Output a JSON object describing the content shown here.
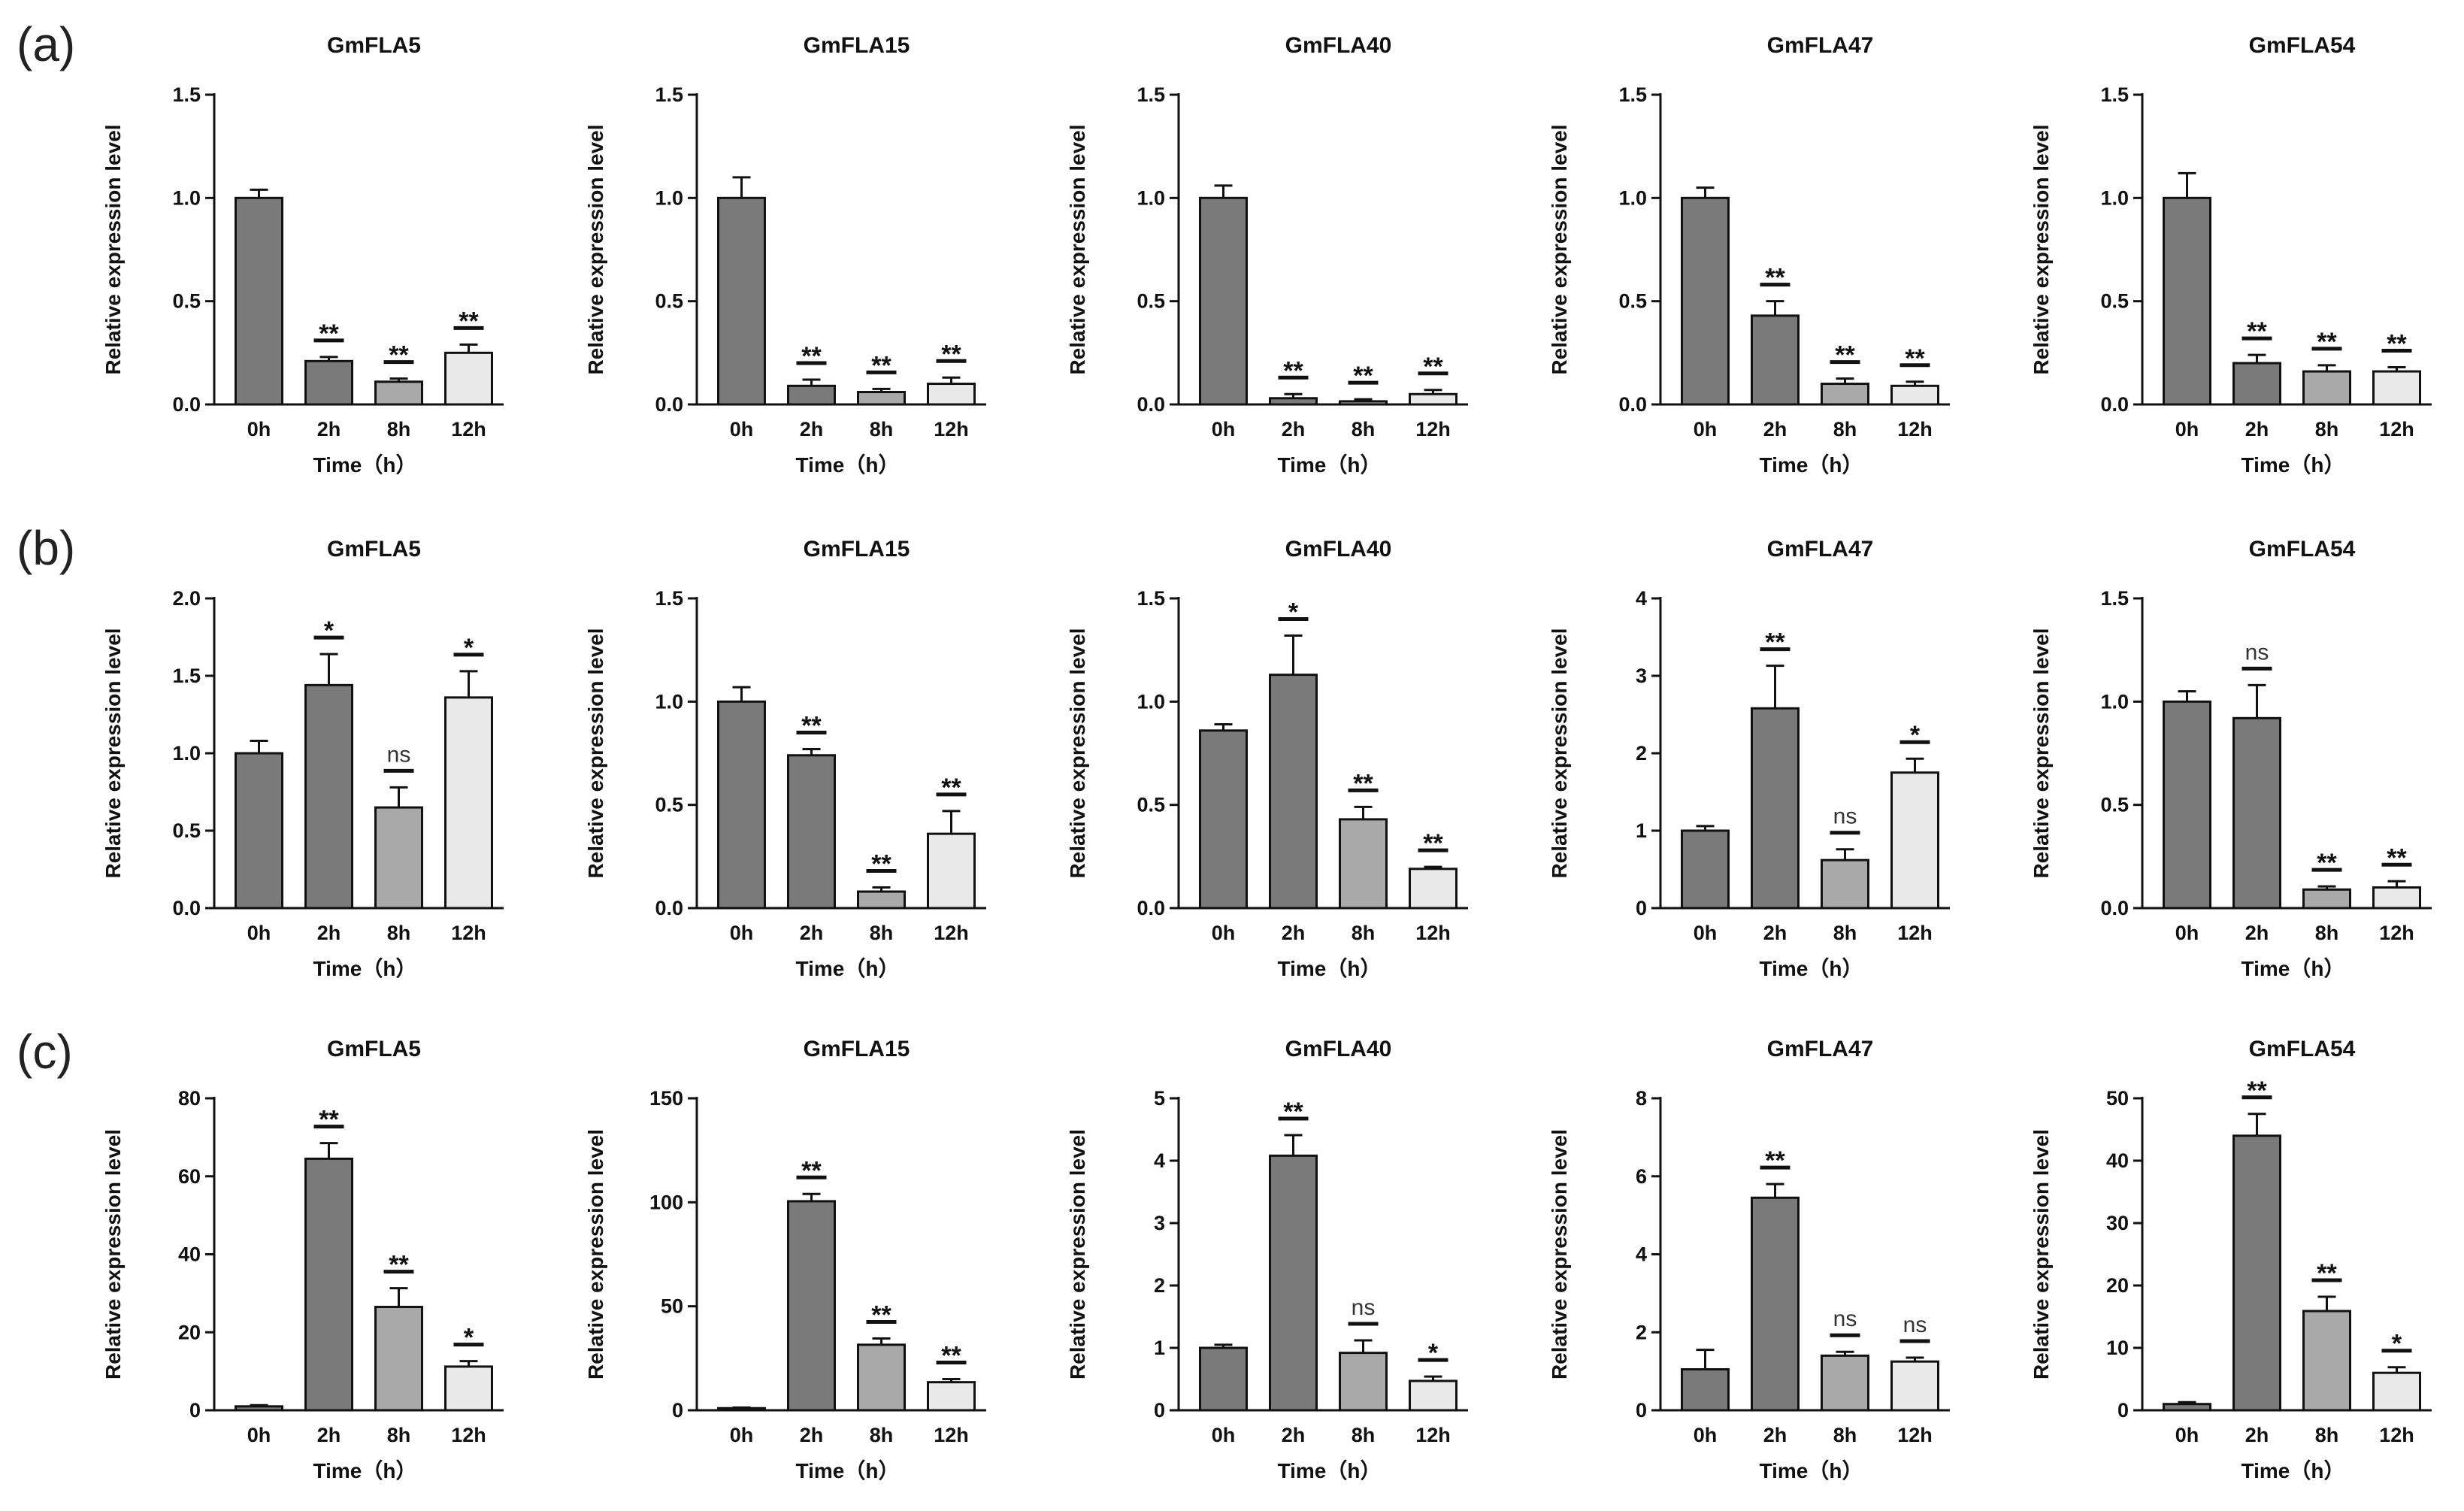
{
  "panel_labels": [
    "(a)",
    "(b)",
    "(c)"
  ],
  "colors": {
    "bars": [
      "#7a7a7a",
      "#7a7a7a",
      "#a9a9a9",
      "#e9e9e9"
    ],
    "outline": "#111111"
  },
  "chart_data": [
    {
      "type": "bar",
      "row": 0,
      "col": 0,
      "title": "GmFLA5",
      "xlabel": "Time（h）",
      "ylabel": "Relative expression level",
      "categories": [
        "0h",
        "2h",
        "8h",
        "12h"
      ],
      "values": [
        1.0,
        0.21,
        0.11,
        0.25
      ],
      "errors": [
        0.04,
        0.02,
        0.015,
        0.04
      ],
      "significance": [
        "",
        "**",
        "**",
        "**"
      ],
      "ylim": [
        0,
        1.5
      ],
      "yticks": [
        0,
        0.5,
        1.0,
        1.5
      ],
      "ytick_labels": [
        "0.0",
        "0.5",
        "1.0",
        "1.5"
      ]
    },
    {
      "type": "bar",
      "row": 0,
      "col": 1,
      "title": "GmFLA15",
      "xlabel": "Time（h）",
      "ylabel": "Relative expression level",
      "categories": [
        "0h",
        "2h",
        "8h",
        "12h"
      ],
      "values": [
        1.0,
        0.09,
        0.06,
        0.1
      ],
      "errors": [
        0.1,
        0.03,
        0.015,
        0.03
      ],
      "significance": [
        "",
        "**",
        "**",
        "**"
      ],
      "ylim": [
        0,
        1.5
      ],
      "yticks": [
        0,
        0.5,
        1.0,
        1.5
      ],
      "ytick_labels": [
        "0.0",
        "0.5",
        "1.0",
        "1.5"
      ]
    },
    {
      "type": "bar",
      "row": 0,
      "col": 2,
      "title": "GmFLA40",
      "xlabel": "Time（h）",
      "ylabel": "Relative expression level",
      "categories": [
        "0h",
        "2h",
        "8h",
        "12h"
      ],
      "values": [
        1.0,
        0.03,
        0.015,
        0.05
      ],
      "errors": [
        0.06,
        0.02,
        0.01,
        0.02
      ],
      "significance": [
        "",
        "**",
        "**",
        "**"
      ],
      "ylim": [
        0,
        1.5
      ],
      "yticks": [
        0,
        0.5,
        1.0,
        1.5
      ],
      "ytick_labels": [
        "0.0",
        "0.5",
        "1.0",
        "1.5"
      ]
    },
    {
      "type": "bar",
      "row": 0,
      "col": 3,
      "title": "GmFLA47",
      "xlabel": "Time（h）",
      "ylabel": "Relative expression level",
      "categories": [
        "0h",
        "2h",
        "8h",
        "12h"
      ],
      "values": [
        1.0,
        0.43,
        0.1,
        0.09
      ],
      "errors": [
        0.05,
        0.07,
        0.025,
        0.02
      ],
      "significance": [
        "",
        "**",
        "**",
        "**"
      ],
      "ylim": [
        0,
        1.5
      ],
      "yticks": [
        0,
        0.5,
        1.0,
        1.5
      ],
      "ytick_labels": [
        "0.0",
        "0.5",
        "1.0",
        "1.5"
      ]
    },
    {
      "type": "bar",
      "row": 0,
      "col": 4,
      "title": "GmFLA54",
      "xlabel": "Time（h）",
      "ylabel": "Relative expression level",
      "categories": [
        "0h",
        "2h",
        "8h",
        "12h"
      ],
      "values": [
        1.0,
        0.2,
        0.16,
        0.16
      ],
      "errors": [
        0.12,
        0.04,
        0.03,
        0.02
      ],
      "significance": [
        "",
        "**",
        "**",
        "**"
      ],
      "ylim": [
        0,
        1.5
      ],
      "yticks": [
        0,
        0.5,
        1.0,
        1.5
      ],
      "ytick_labels": [
        "0.0",
        "0.5",
        "1.0",
        "1.5"
      ]
    },
    {
      "type": "bar",
      "row": 1,
      "col": 0,
      "title": "GmFLA5",
      "xlabel": "Time（h）",
      "ylabel": "Relative expression level",
      "categories": [
        "0h",
        "2h",
        "8h",
        "12h"
      ],
      "values": [
        1.0,
        1.44,
        0.65,
        1.36
      ],
      "errors": [
        0.08,
        0.2,
        0.13,
        0.17
      ],
      "significance": [
        "",
        "*",
        "ns",
        "*"
      ],
      "ylim": [
        0,
        2.0
      ],
      "yticks": [
        0,
        0.5,
        1.0,
        1.5,
        2.0
      ],
      "ytick_labels": [
        "0.0",
        "0.5",
        "1.0",
        "1.5",
        "2.0"
      ]
    },
    {
      "type": "bar",
      "row": 1,
      "col": 1,
      "title": "GmFLA15",
      "xlabel": "Time（h）",
      "ylabel": "Relative expression level",
      "categories": [
        "0h",
        "2h",
        "8h",
        "12h"
      ],
      "values": [
        1.0,
        0.74,
        0.08,
        0.36
      ],
      "errors": [
        0.07,
        0.03,
        0.02,
        0.11
      ],
      "significance": [
        "",
        "**",
        "**",
        "**"
      ],
      "ylim": [
        0,
        1.5
      ],
      "yticks": [
        0,
        0.5,
        1.0,
        1.5
      ],
      "ytick_labels": [
        "0.0",
        "0.5",
        "1.0",
        "1.5"
      ]
    },
    {
      "type": "bar",
      "row": 1,
      "col": 2,
      "title": "GmFLA40",
      "xlabel": "Time（h）",
      "ylabel": "Relative expression level",
      "categories": [
        "0h",
        "2h",
        "8h",
        "12h"
      ],
      "values": [
        0.86,
        1.13,
        0.43,
        0.19
      ],
      "errors": [
        0.03,
        0.19,
        0.06,
        0.01
      ],
      "significance": [
        "",
        "*",
        "**",
        "**"
      ],
      "ylim": [
        0,
        1.5
      ],
      "yticks": [
        0,
        0.5,
        1.0,
        1.5
      ],
      "ytick_labels": [
        "0.0",
        "0.5",
        "1.0",
        "1.5"
      ]
    },
    {
      "type": "bar",
      "row": 1,
      "col": 3,
      "title": "GmFLA47",
      "xlabel": "Time（h）",
      "ylabel": "Relative expression level",
      "categories": [
        "0h",
        "2h",
        "8h",
        "12h"
      ],
      "values": [
        1.0,
        2.58,
        0.62,
        1.75
      ],
      "errors": [
        0.06,
        0.55,
        0.14,
        0.18
      ],
      "significance": [
        "",
        "**",
        "ns",
        "*"
      ],
      "ylim": [
        0,
        4
      ],
      "yticks": [
        0,
        1,
        2,
        3,
        4
      ],
      "ytick_labels": [
        "0",
        "1",
        "2",
        "3",
        "4"
      ]
    },
    {
      "type": "bar",
      "row": 1,
      "col": 4,
      "title": "GmFLA54",
      "xlabel": "Time（h）",
      "ylabel": "Relative expression level",
      "categories": [
        "0h",
        "2h",
        "8h",
        "12h"
      ],
      "values": [
        1.0,
        0.92,
        0.09,
        0.1
      ],
      "errors": [
        0.05,
        0.16,
        0.015,
        0.03
      ],
      "significance": [
        "",
        "ns",
        "**",
        "**"
      ],
      "ylim": [
        0,
        1.5
      ],
      "yticks": [
        0,
        0.5,
        1.0,
        1.5
      ],
      "ytick_labels": [
        "0.0",
        "0.5",
        "1.0",
        "1.5"
      ]
    },
    {
      "type": "bar",
      "row": 2,
      "col": 0,
      "title": "GmFLA5",
      "xlabel": "Time（h）",
      "ylabel": "Relative expression level",
      "categories": [
        "0h",
        "2h",
        "8h",
        "12h"
      ],
      "values": [
        1.0,
        64.5,
        26.5,
        11.2
      ],
      "errors": [
        0.3,
        4.0,
        4.8,
        1.4
      ],
      "significance": [
        "",
        "**",
        "**",
        "*"
      ],
      "ylim": [
        0,
        80
      ],
      "yticks": [
        0,
        20,
        40,
        60,
        80
      ],
      "ytick_labels": [
        "0",
        "20",
        "40",
        "60",
        "80"
      ]
    },
    {
      "type": "bar",
      "row": 2,
      "col": 1,
      "title": "GmFLA15",
      "xlabel": "Time（h）",
      "ylabel": "Relative expression level",
      "categories": [
        "0h",
        "2h",
        "8h",
        "12h"
      ],
      "values": [
        1.0,
        100.5,
        31.5,
        13.5
      ],
      "errors": [
        0.3,
        3.5,
        3.0,
        1.5
      ],
      "significance": [
        "",
        "**",
        "**",
        "**"
      ],
      "ylim": [
        0,
        150
      ],
      "yticks": [
        0,
        50,
        100,
        150
      ],
      "ytick_labels": [
        "0",
        "50",
        "100",
        "150"
      ]
    },
    {
      "type": "bar",
      "row": 2,
      "col": 2,
      "title": "GmFLA40",
      "xlabel": "Time（h）",
      "ylabel": "Relative expression level",
      "categories": [
        "0h",
        "2h",
        "8h",
        "12h"
      ],
      "values": [
        1.0,
        4.08,
        0.92,
        0.47
      ],
      "errors": [
        0.05,
        0.33,
        0.2,
        0.07
      ],
      "significance": [
        "",
        "**",
        "ns",
        "*"
      ],
      "ylim": [
        0,
        5
      ],
      "yticks": [
        0,
        1,
        2,
        3,
        4,
        5
      ],
      "ytick_labels": [
        "0",
        "1",
        "2",
        "3",
        "4",
        "5"
      ]
    },
    {
      "type": "bar",
      "row": 2,
      "col": 3,
      "title": "GmFLA47",
      "xlabel": "Time（h）",
      "ylabel": "Relative expression level",
      "categories": [
        "0h",
        "2h",
        "8h",
        "12h"
      ],
      "values": [
        1.05,
        5.45,
        1.4,
        1.25
      ],
      "errors": [
        0.5,
        0.35,
        0.1,
        0.1
      ],
      "significance": [
        "",
        "**",
        "ns",
        "ns"
      ],
      "ylim": [
        0,
        8
      ],
      "yticks": [
        0,
        2,
        4,
        6,
        8
      ],
      "ytick_labels": [
        "0",
        "2",
        "4",
        "6",
        "8"
      ]
    },
    {
      "type": "bar",
      "row": 2,
      "col": 4,
      "title": "GmFLA54",
      "xlabel": "Time（h）",
      "ylabel": "Relative expression level",
      "categories": [
        "0h",
        "2h",
        "8h",
        "12h"
      ],
      "values": [
        1.0,
        44.0,
        15.9,
        6.0
      ],
      "errors": [
        0.3,
        3.5,
        2.3,
        0.9
      ],
      "significance": [
        "",
        "**",
        "**",
        "*"
      ],
      "ylim": [
        0,
        50
      ],
      "yticks": [
        0,
        10,
        20,
        30,
        40,
        50
      ],
      "ytick_labels": [
        "0",
        "10",
        "20",
        "30",
        "40",
        "50"
      ]
    }
  ]
}
